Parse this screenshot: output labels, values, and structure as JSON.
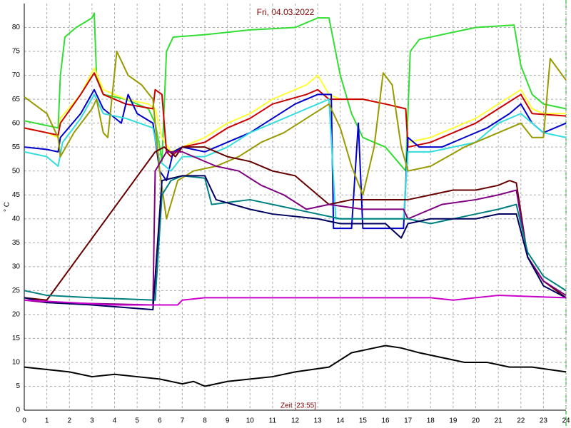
{
  "chart_data": {
    "type": "line",
    "title": "Fri, 04.03.2022",
    "x_label": "Zeit [23:55]",
    "y_label": "° C",
    "xlim": [
      0,
      24
    ],
    "ylim": [
      0,
      85
    ],
    "xticks": [
      0,
      1,
      2,
      3,
      4,
      5,
      6,
      7,
      8,
      9,
      10,
      11,
      12,
      13,
      14,
      15,
      16,
      17,
      18,
      19,
      20,
      21,
      22,
      23,
      24
    ],
    "yticks": [
      0,
      5,
      10,
      15,
      20,
      25,
      30,
      35,
      40,
      45,
      50,
      55,
      60,
      65,
      70,
      75,
      80
    ],
    "grid": true,
    "series": [
      {
        "color": "#33dd33",
        "x": [
          0,
          1.5,
          1.6,
          1.8,
          2.3,
          3.0,
          3.1,
          3.2,
          3.5,
          4.5,
          5.5,
          5.8,
          6.0,
          6.1,
          6.3,
          6.6,
          8,
          10,
          12,
          13,
          13.5,
          14,
          14.5,
          15,
          16,
          16.9,
          17.1,
          17.5,
          19,
          20,
          21.7,
          22,
          22.5,
          23,
          24
        ],
        "values": [
          60.5,
          59,
          70,
          78,
          80,
          82,
          83,
          70,
          66,
          65,
          63,
          60,
          55,
          52,
          75,
          78,
          78.5,
          79.5,
          80,
          82,
          82,
          70,
          62,
          57,
          55,
          50,
          75,
          77.5,
          79,
          80,
          80.5,
          72,
          66,
          64,
          63
        ]
      },
      {
        "color": "#ffff33",
        "x": [
          0,
          1,
          1.5,
          1.6,
          2.5,
          3.1,
          3.5,
          4.5,
          5.5,
          5.8,
          6.1,
          6.5,
          7,
          8,
          9,
          10,
          11,
          12.5,
          13,
          13.5,
          14,
          15,
          16,
          16.9,
          17,
          18,
          20,
          21,
          22,
          22.5,
          23,
          24
        ],
        "values": [
          59,
          58,
          57,
          61,
          66,
          71.5,
          67,
          65,
          64,
          63,
          57,
          54,
          55,
          57,
          60,
          62,
          65,
          68,
          70,
          66,
          65,
          65,
          64,
          63,
          56,
          57,
          61,
          64,
          67,
          63,
          62,
          62
        ]
      },
      {
        "color": "#cc0000",
        "x": [
          0,
          1,
          1.5,
          1.6,
          2.5,
          3.1,
          3.5,
          4.5,
          5.7,
          5.8,
          6.1,
          6.3,
          6.5,
          7,
          8,
          9,
          10,
          11,
          12.5,
          13,
          13.5,
          15,
          16,
          16.9,
          17,
          18,
          20,
          21,
          22,
          22.5,
          24
        ],
        "values": [
          59,
          58,
          57.5,
          60,
          66,
          70.5,
          66,
          64,
          63,
          67,
          66,
          54,
          53,
          55,
          56,
          59,
          61,
          64,
          66,
          67,
          65,
          65,
          64,
          63,
          55,
          56,
          60,
          63,
          66,
          62,
          61.5
        ]
      },
      {
        "color": "#0000cc",
        "x": [
          0,
          1,
          1.5,
          1.6,
          2.5,
          3.1,
          3.5,
          4.3,
          4.6,
          5,
          5.7,
          6.0,
          6.3,
          6.6,
          7,
          8,
          9,
          10,
          11,
          12,
          13,
          13.6,
          13.7,
          14.5,
          14.8,
          15,
          16.8,
          17,
          17.5,
          18.5,
          19.5,
          20.5,
          21.5,
          22,
          22.5,
          23,
          24
        ],
        "values": [
          55,
          54.5,
          54,
          57,
          62,
          67,
          63,
          60,
          66,
          62,
          60,
          50,
          48,
          54,
          55,
          54,
          56,
          58,
          61,
          64,
          66,
          66,
          38,
          38,
          60,
          38,
          38,
          57,
          55,
          55,
          57,
          59,
          62,
          64,
          60,
          58,
          60
        ]
      },
      {
        "color": "#33dddd",
        "x": [
          0,
          1,
          1.5,
          1.7,
          2.5,
          3.1,
          3.5,
          4.5,
          5.7,
          6,
          6.5,
          7,
          8,
          9,
          10,
          11,
          12,
          13,
          13.5,
          13.8,
          16.8,
          17,
          18,
          20,
          21,
          22,
          23,
          24
        ],
        "values": [
          54,
          53,
          51,
          56,
          61,
          66,
          62,
          61,
          59,
          52,
          50,
          53,
          53,
          55,
          58,
          60,
          62,
          64,
          65,
          40,
          40,
          54,
          54,
          56,
          60,
          62,
          58,
          57
        ]
      },
      {
        "color": "#999900",
        "x": [
          0,
          1,
          1.5,
          1.6,
          2.2,
          3,
          3.2,
          3.5,
          3.7,
          3.9,
          4.1,
          4.6,
          5.2,
          5.7,
          6.0,
          6.3,
          6.8,
          7.5,
          8.5,
          9.5,
          10.5,
          11.5,
          12.5,
          13.5,
          14,
          14.5,
          15,
          15.5,
          15.9,
          16.3,
          16.7,
          17,
          18,
          19.5,
          21,
          22,
          22.5,
          23,
          23.3,
          24
        ],
        "values": [
          65.5,
          62,
          57,
          53,
          58,
          63,
          65,
          58,
          57,
          66,
          75,
          70,
          68,
          65,
          50,
          40,
          48,
          50,
          51,
          53,
          56,
          58,
          61,
          64,
          59,
          51,
          45,
          55,
          70.5,
          68,
          55,
          50,
          51,
          55,
          58,
          60,
          57,
          57,
          73.5,
          69
        ]
      },
      {
        "color": "#660000",
        "x": [
          0,
          1,
          5.8,
          6.2,
          6.7,
          7,
          8,
          9,
          10,
          11,
          12,
          13,
          13.5,
          14.5,
          16,
          17,
          18,
          19,
          20,
          21,
          21.5,
          21.8,
          22.3,
          23,
          24
        ],
        "values": [
          23.5,
          23,
          54,
          55,
          53,
          55,
          55,
          53,
          52,
          50,
          49,
          45,
          43,
          44,
          44,
          44,
          45,
          46,
          46,
          47,
          48,
          47.5,
          32,
          27,
          23.5
        ]
      },
      {
        "color": "#800080",
        "x": [
          0,
          1,
          5.7,
          5.8,
          6.3,
          7,
          8.5,
          9.5,
          10.5,
          11.5,
          12.5,
          13.5,
          15,
          16.8,
          17,
          18.5,
          20,
          21,
          21.8,
          22.3,
          23,
          24
        ],
        "values": [
          23,
          22.5,
          22,
          50,
          54,
          54,
          51,
          50,
          47,
          45,
          42,
          43,
          42,
          42,
          40,
          43,
          44,
          45,
          46,
          32,
          27,
          24
        ]
      },
      {
        "color": "#008080",
        "x": [
          0,
          1,
          3,
          5.8,
          6.1,
          6.5,
          7,
          8,
          8.3,
          10,
          11,
          13,
          14,
          16,
          17,
          18,
          19,
          20,
          21,
          21.8,
          22.3,
          23,
          24
        ],
        "values": [
          25,
          24,
          23.5,
          23,
          45,
          48,
          49,
          48.5,
          43,
          44,
          43,
          41,
          40,
          40,
          40,
          39,
          40,
          41,
          42,
          43,
          33,
          28,
          25
        ]
      },
      {
        "color": "#000060",
        "x": [
          0,
          1,
          3,
          5.7,
          6.1,
          7,
          8,
          8.5,
          10,
          11,
          13,
          14,
          16,
          16.7,
          17,
          18,
          19,
          20,
          21,
          21.8,
          22.3,
          23,
          24
        ],
        "values": [
          23.5,
          22.5,
          22,
          21,
          48,
          49,
          49,
          44,
          42,
          41,
          40,
          39,
          39,
          36,
          39,
          40,
          40,
          40,
          41,
          41,
          32,
          26,
          23.5
        ]
      },
      {
        "color": "#cc00cc",
        "x": [
          0,
          2,
          4,
          6.8,
          7,
          8,
          12,
          18,
          19,
          20,
          21,
          24
        ],
        "values": [
          23,
          22.5,
          22,
          22,
          23,
          23.5,
          23.5,
          23.5,
          23,
          23.5,
          24,
          23.5
        ]
      },
      {
        "color": "#000000",
        "x": [
          0,
          2,
          3,
          4,
          5,
          6,
          7,
          7.5,
          8,
          9,
          10,
          11,
          12,
          13.5,
          14.5,
          15.5,
          16,
          16.7,
          17.5,
          18.5,
          19.5,
          20.5,
          21.5,
          22.5,
          24
        ],
        "values": [
          9,
          8,
          7,
          7.5,
          7,
          6.5,
          5.5,
          6,
          5,
          6,
          6.5,
          7,
          8,
          9,
          12,
          13,
          13.5,
          13,
          12,
          11,
          10,
          10,
          9,
          9,
          8
        ]
      }
    ]
  }
}
